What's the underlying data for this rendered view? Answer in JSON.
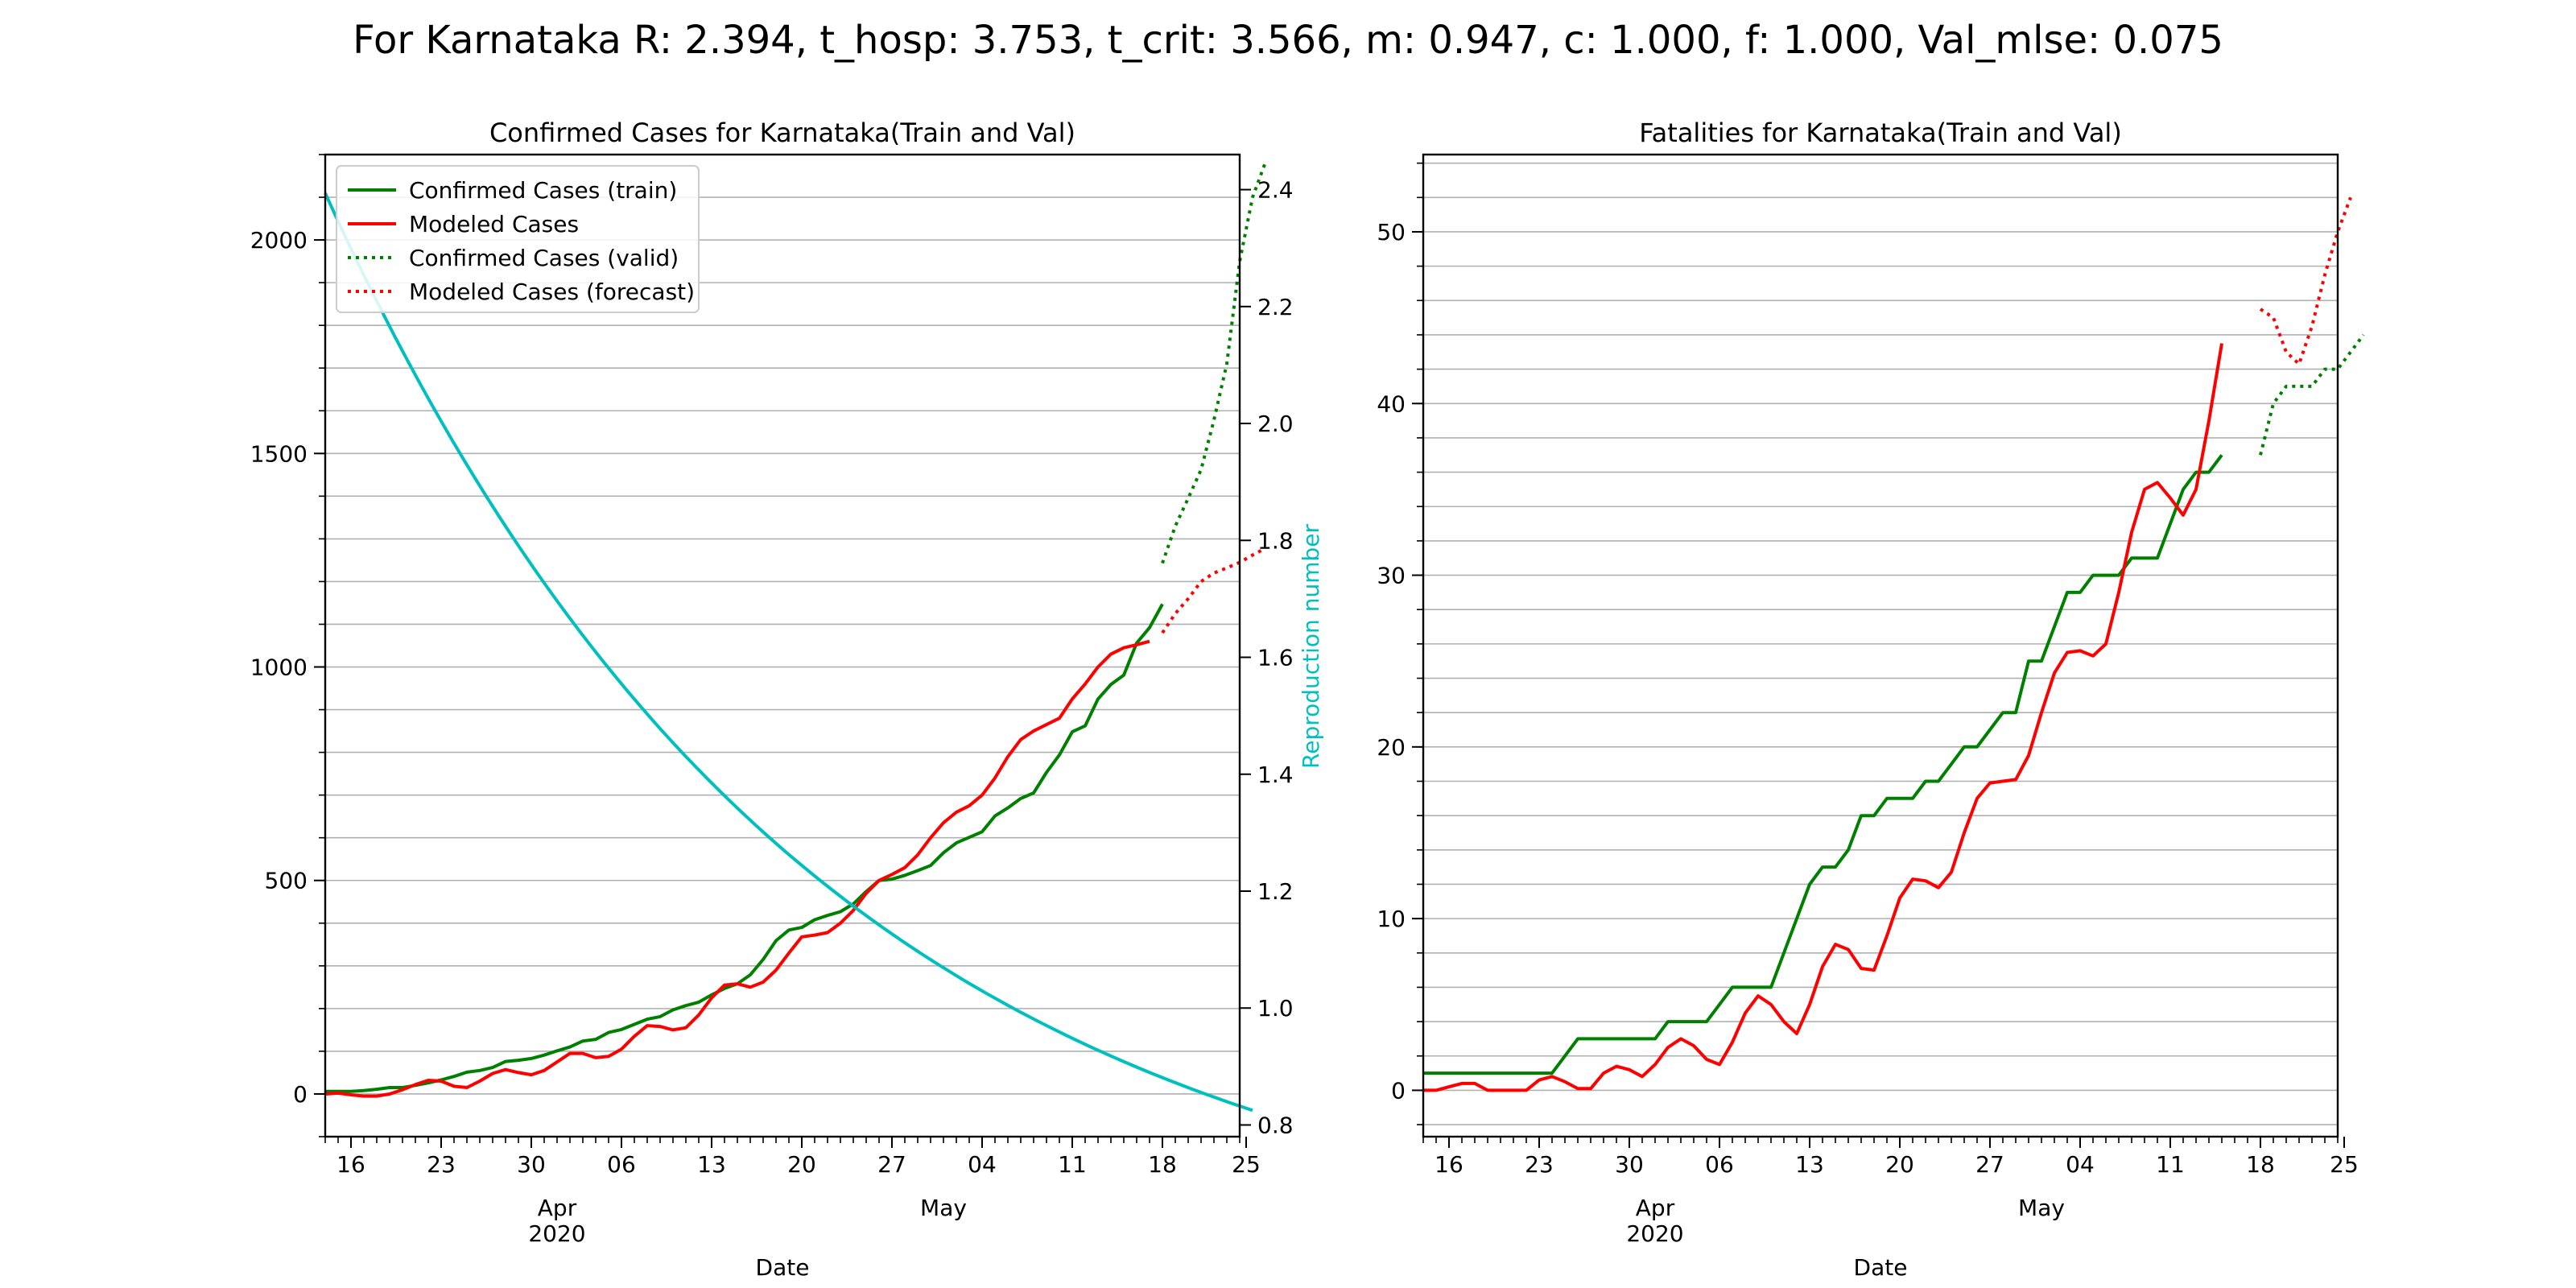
{
  "figure": {
    "suptitle": "For Karnataka R: 2.394, t_hosp: 3.753, t_crit: 3.566, m: 0.947, c: 1.000, f: 1.000, Val_mlse: 0.075"
  },
  "colors": {
    "train": "#008000",
    "model": "#ff0000",
    "repro": "#00bfbf",
    "grid": "#b0b0b0"
  },
  "chart_data": [
    {
      "type": "line",
      "title": "Confirmed Cases for Karnataka(Train and Val)",
      "xlabel": "Date",
      "ylabel": "",
      "y2label": "Reproduction number",
      "x_range": [
        -1,
        70
      ],
      "ylim": [
        -100,
        2200
      ],
      "y_ticks": [
        0,
        500,
        1000,
        1500,
        2000
      ],
      "y2lim": [
        0.78,
        2.46
      ],
      "y2_ticks": [
        0.8,
        1.0,
        1.2,
        1.4,
        1.6,
        1.8,
        2.0,
        2.2,
        2.4
      ],
      "x_ticks": [
        {
          "x": 1,
          "label": "16"
        },
        {
          "x": 8,
          "label": "23"
        },
        {
          "x": 15,
          "label": "30"
        },
        {
          "x": 22,
          "label": "06"
        },
        {
          "x": 29,
          "label": "13"
        },
        {
          "x": 36,
          "label": "20"
        },
        {
          "x": 43,
          "label": "27"
        },
        {
          "x": 50,
          "label": "04"
        },
        {
          "x": 57,
          "label": "11"
        },
        {
          "x": 64,
          "label": "18"
        },
        {
          "x": 71,
          "label": "25"
        }
      ],
      "x_major_labels": [
        {
          "x": 17,
          "label": "Apr"
        },
        {
          "x": 17,
          "label": "2020",
          "row": 2
        },
        {
          "x": 47,
          "label": "May"
        }
      ],
      "legend": "top-left",
      "series": [
        {
          "name": "Confirmed Cases (train)",
          "color_key": "train",
          "style": "solid",
          "x_start": -1,
          "values": [
            6,
            6,
            6,
            8,
            11,
            15,
            15,
            20,
            26,
            33,
            41,
            51,
            55,
            62,
            76,
            79,
            83,
            91,
            101,
            110,
            124,
            128,
            144,
            151,
            163,
            175,
            181,
            197,
            207,
            215,
            232,
            247,
            258,
            279,
            315,
            359,
            384,
            390,
            408,
            418,
            427,
            445,
            474,
            500,
            503,
            512,
            523,
            535,
            565,
            588,
            601,
            614,
            651,
            670,
            692,
            705,
            753,
            794,
            848,
            862,
            925,
            959,
            981,
            1056,
            1092,
            1147
          ]
        },
        {
          "name": "Modeled Cases",
          "color_key": "model",
          "style": "solid",
          "x_start": -1,
          "values": [
            0,
            2,
            -2,
            -5,
            -5,
            0,
            10,
            22,
            32,
            30,
            18,
            15,
            30,
            48,
            57,
            50,
            45,
            55,
            75,
            95,
            95,
            85,
            88,
            105,
            135,
            160,
            158,
            150,
            155,
            185,
            225,
            255,
            258,
            250,
            262,
            290,
            330,
            368,
            372,
            378,
            400,
            430,
            470,
            500,
            514,
            530,
            560,
            600,
            635,
            660,
            675,
            700,
            740,
            790,
            830,
            850,
            865,
            880,
            925,
            960,
            1000,
            1030,
            1045,
            1052,
            1060
          ]
        },
        {
          "name": "Confirmed Cases (valid)",
          "color_key": "train",
          "style": "dotted",
          "x_start": 64,
          "values": [
            1243,
            1330,
            1395,
            1462,
            1578,
            1710,
            1950,
            2100,
            2182
          ]
        },
        {
          "name": "Modeled Cases (forecast)",
          "color_key": "model",
          "style": "dotted",
          "x_start": 64,
          "values": [
            1080,
            1125,
            1160,
            1200,
            1220,
            1232,
            1245,
            1262,
            1278
          ]
        },
        {
          "name": "",
          "axis": "right",
          "color_key": "repro",
          "style": "solid",
          "x": [
            -1,
            71
          ],
          "curve": {
            "start": 2.394,
            "end": 0.825
          }
        }
      ]
    },
    {
      "type": "line",
      "title": "Fatalities for Karnataka(Train and Val)",
      "xlabel": "Date",
      "ylabel": "",
      "x_range": [
        -1,
        70
      ],
      "ylim": [
        -2.7,
        54.5
      ],
      "y_ticks": [
        0,
        10,
        20,
        30,
        40,
        50
      ],
      "y_minor_step": 2,
      "x_ticks": [
        {
          "x": 1,
          "label": "16"
        },
        {
          "x": 8,
          "label": "23"
        },
        {
          "x": 15,
          "label": "30"
        },
        {
          "x": 22,
          "label": "06"
        },
        {
          "x": 29,
          "label": "13"
        },
        {
          "x": 36,
          "label": "20"
        },
        {
          "x": 43,
          "label": "27"
        },
        {
          "x": 50,
          "label": "04"
        },
        {
          "x": 57,
          "label": "11"
        },
        {
          "x": 64,
          "label": "18"
        },
        {
          "x": 71,
          "label": "25"
        }
      ],
      "x_major_labels": [
        {
          "x": 17,
          "label": "Apr"
        },
        {
          "x": 17,
          "label": "2020",
          "row": 2
        },
        {
          "x": 47,
          "label": "May"
        }
      ],
      "series": [
        {
          "name": "",
          "color_key": "train",
          "style": "solid",
          "x_start": -1,
          "values": [
            1,
            1,
            1,
            1,
            1,
            1,
            1,
            1,
            1,
            1,
            1,
            2,
            3,
            3,
            3,
            3,
            3,
            3,
            3,
            4,
            4,
            4,
            4,
            5,
            6,
            6,
            6,
            6,
            8,
            10,
            12,
            13,
            13,
            14,
            16,
            16,
            17,
            17,
            17,
            18,
            18,
            19,
            20,
            20,
            21,
            22,
            22,
            25,
            25,
            27,
            29,
            29,
            30,
            30,
            30,
            31,
            31,
            31,
            33,
            35,
            36,
            36,
            37
          ]
        },
        {
          "name": "",
          "color_key": "model",
          "style": "solid",
          "x_start": -1,
          "values": [
            0,
            0,
            0.2,
            0.4,
            0.4,
            0,
            0,
            0,
            0,
            0.6,
            0.8,
            0.5,
            0.1,
            0.1,
            1,
            1.4,
            1.2,
            0.8,
            1.5,
            2.5,
            3,
            2.6,
            1.8,
            1.5,
            2.8,
            4.5,
            5.5,
            5,
            4,
            3.3,
            5,
            7.2,
            8.5,
            8.2,
            7.1,
            7,
            9,
            11.2,
            12.3,
            12.2,
            11.8,
            12.7,
            15,
            17,
            17.9,
            18,
            18.1,
            19.5,
            22,
            24.3,
            25.5,
            25.6,
            25.3,
            26,
            29,
            32.5,
            35,
            35.4,
            34.5,
            33.5,
            35,
            39,
            43.5
          ]
        },
        {
          "name": "",
          "color_key": "train",
          "style": "dotted",
          "x_start": 64,
          "values": [
            37,
            40,
            41,
            41,
            41,
            42,
            42,
            43,
            44
          ]
        },
        {
          "name": "",
          "color_key": "model",
          "style": "dotted",
          "x_start": 64,
          "values": [
            45.5,
            45,
            43,
            42.3,
            44.5,
            47.5,
            50,
            52
          ]
        }
      ]
    }
  ]
}
